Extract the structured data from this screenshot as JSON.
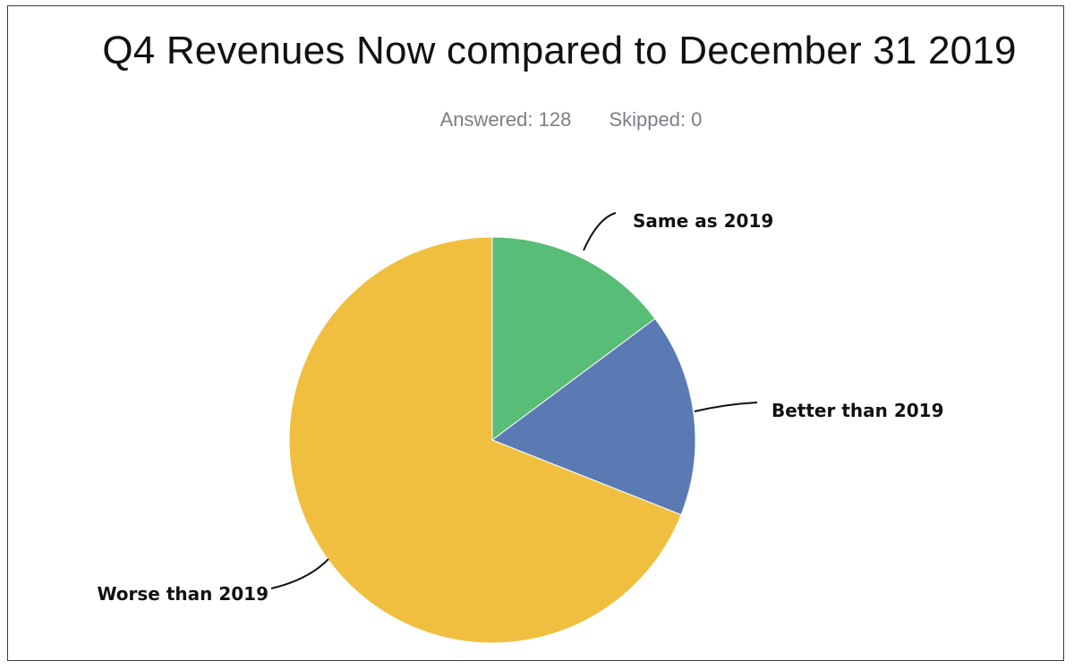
{
  "header": {
    "title": "Q4 Revenues Now compared to December 31 2019",
    "answered": "Answered: 128",
    "skipped": "Skipped: 0"
  },
  "chart_data": {
    "type": "pie",
    "title": "Q4 Revenues Now compared to December 31 2019",
    "slices": [
      {
        "label": "Same as 2019",
        "value": 14.8,
        "color": "#58bd76"
      },
      {
        "label": "Better than 2019",
        "value": 16.2,
        "color": "#5a7ab4"
      },
      {
        "label": "Worse than 2019",
        "value": 69.0,
        "color": "#f0bf40"
      }
    ],
    "legend": "none (callout labels)"
  }
}
